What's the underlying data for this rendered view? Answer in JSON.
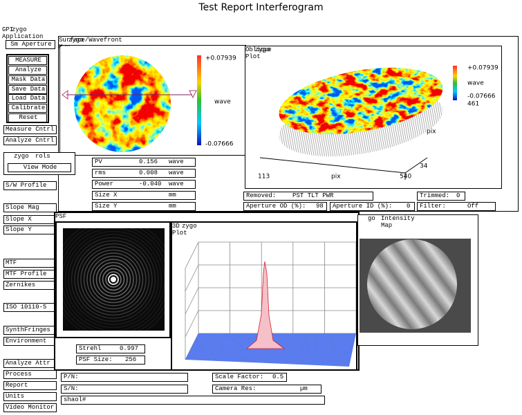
{
  "page": {
    "title": "Test Report Interferogram"
  },
  "app": {
    "title": "GPI Application",
    "logo": "zygo"
  },
  "left_panel": {
    "buttons": [
      "Sm Aperture",
      "MEASURE",
      "Analyze",
      "Mask Data",
      "Save Data",
      "Load Data",
      "Calibrate",
      "Reset",
      "Measure Cntrl",
      "Analyze Cntrl",
      "S/W Profile",
      "Slope Mag",
      "Slope X",
      "Slope Y",
      "MTF",
      "MTF Profile",
      "Zernikes",
      "ISO 10110-5",
      "SynthFringes",
      "Environment",
      "Analyze Attr",
      "Process",
      "Report",
      "Units",
      "Video Monitor"
    ]
  },
  "controls_window": {
    "logo": "zygo",
    "title": "rols",
    "button": "View Mode"
  },
  "surface_window": {
    "logo": "zygo",
    "title": "Surface/Wavefront Map",
    "scale_max": "+0.07939",
    "scale_unit": "wave",
    "scale_min": "-0.07666"
  },
  "oblique_window": {
    "logo": "zygo",
    "title": "Oblique Plot",
    "scale_max": "+0.07939",
    "scale_unit": "wave",
    "scale_min": "-0.07666",
    "axis_labels": [
      "461",
      "pix",
      "34",
      "113",
      "pix",
      "540"
    ]
  },
  "stats": [
    {
      "label": "PV",
      "value": "0.156",
      "unit": "wave"
    },
    {
      "label": "rms",
      "value": "0.008",
      "unit": "wave"
    },
    {
      "label": "Power",
      "value": "-0.040",
      "unit": "wave"
    },
    {
      "label": "Size X",
      "unit": "mm"
    },
    {
      "label": "Size Y",
      "unit": "mm"
    }
  ],
  "settings": {
    "removed": {
      "label": "Removed:",
      "value": "PST TLT PWR"
    },
    "trimmed": {
      "label": "Trimmed:",
      "value": "0"
    },
    "aperture_od": {
      "label": "Aperture OD (%):",
      "value": "98"
    },
    "aperture_id": {
      "label": "Aperture ID (%):",
      "value": "0"
    },
    "filter": {
      "label": "Filter:",
      "value": "Off"
    }
  },
  "psf_window": {
    "title": "PSF",
    "strehl": {
      "label": "Strehl",
      "value": "0.997"
    },
    "psf_size": {
      "label": "PSF Size:",
      "value": "256"
    }
  },
  "plot3d_window": {
    "logo": "zygo",
    "title": "3D Plot"
  },
  "intensity_window": {
    "logo": "go",
    "title": "Intensity Map"
  },
  "part_info": {
    "pn": {
      "label": "P/N:"
    },
    "sn": {
      "label": "S/N:"
    },
    "scale_factor": {
      "label": "Scale Factor:",
      "value": "0.5"
    },
    "camera_res": {
      "label": "Camera Res:",
      "unit": "µm"
    },
    "file": "shaol#"
  }
}
